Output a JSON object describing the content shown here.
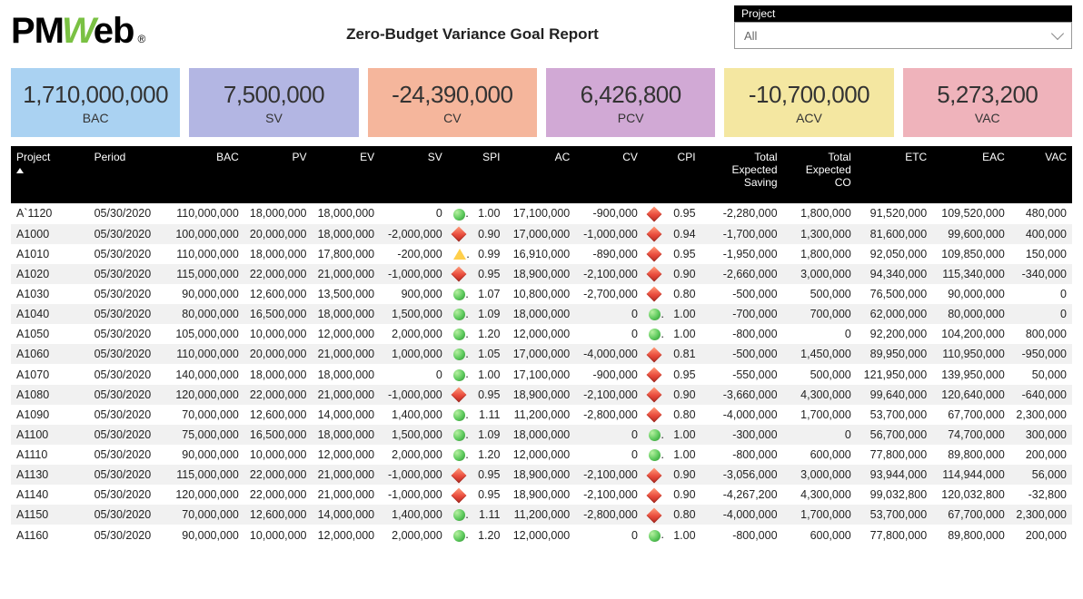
{
  "header": {
    "title": "Zero-Budget Variance Goal Report",
    "logo_text_pm": "PM",
    "logo_text_w": "W",
    "logo_text_eb": "eb",
    "logo_text_reg": "®"
  },
  "filter": {
    "label": "Project",
    "selected": "All"
  },
  "kpis": [
    {
      "label": "BAC",
      "value": "1,710,000,000",
      "bg": "#aad2f2"
    },
    {
      "label": "SV",
      "value": "7,500,000",
      "bg": "#b3b6e3"
    },
    {
      "label": "CV",
      "value": "-24,390,000",
      "bg": "#f5b69c"
    },
    {
      "label": "PCV",
      "value": "6,426,800",
      "bg": "#d1a9d5"
    },
    {
      "label": "ACV",
      "value": "-10,700,000",
      "bg": "#f4e7a1"
    },
    {
      "label": "VAC",
      "value": "5,273,200",
      "bg": "#efb3bb"
    }
  ],
  "columns": [
    {
      "key": "project",
      "label": "Project",
      "cls": "c-proj",
      "align": "left",
      "sort": true
    },
    {
      "key": "period",
      "label": "Period",
      "cls": "c-period",
      "align": "left"
    },
    {
      "key": "bac",
      "label": "BAC",
      "cls": "c-bac",
      "align": "right"
    },
    {
      "key": "pv",
      "label": "PV",
      "cls": "c-pv",
      "align": "right"
    },
    {
      "key": "ev",
      "label": "EV",
      "cls": "c-ev",
      "align": "right"
    },
    {
      "key": "sv",
      "label": "SV",
      "cls": "c-sv",
      "align": "right"
    },
    {
      "key": "sv_ind",
      "label": "",
      "cls": "c-svind",
      "align": "center",
      "is_ind": true
    },
    {
      "key": "spi",
      "label": "SPI",
      "cls": "c-spi",
      "align": "right"
    },
    {
      "key": "ac",
      "label": "AC",
      "cls": "c-ac",
      "align": "right"
    },
    {
      "key": "cv",
      "label": "CV",
      "cls": "c-cv",
      "align": "right"
    },
    {
      "key": "cv_ind",
      "label": "",
      "cls": "c-cvind",
      "align": "center",
      "is_ind": true
    },
    {
      "key": "cpi",
      "label": "CPI",
      "cls": "c-cpi",
      "align": "right"
    },
    {
      "key": "tes",
      "label": "Total Expected Saving",
      "cls": "c-tes",
      "align": "right"
    },
    {
      "key": "teco",
      "label": "Total Expected CO",
      "cls": "c-teco",
      "align": "right"
    },
    {
      "key": "etc",
      "label": "ETC",
      "cls": "c-etc",
      "align": "right"
    },
    {
      "key": "eac",
      "label": "EAC",
      "cls": "c-eac",
      "align": "right"
    },
    {
      "key": "vac",
      "label": "VAC",
      "cls": "c-vac",
      "align": "right"
    }
  ],
  "indicator_colors": {
    "green": "#5cc95c",
    "red": "#e94b3c",
    "yellow": "#ffcf4b"
  },
  "rows": [
    {
      "project": "A`1120",
      "period": "05/30/2020",
      "bac": "110,000,000",
      "pv": "18,000,000",
      "ev": "18,000,000",
      "sv": "0",
      "sv_ind": "green",
      "spi": "1.00",
      "ac": "17,100,000",
      "cv": "-900,000",
      "cv_ind": "red",
      "cpi": "0.95",
      "tes": "-2,280,000",
      "teco": "1,800,000",
      "etc": "91,520,000",
      "eac": "109,520,000",
      "vac": "480,000"
    },
    {
      "project": "A1000",
      "period": "05/30/2020",
      "bac": "100,000,000",
      "pv": "20,000,000",
      "ev": "18,000,000",
      "sv": "-2,000,000",
      "sv_ind": "red",
      "spi": "0.90",
      "ac": "17,000,000",
      "cv": "-1,000,000",
      "cv_ind": "red",
      "cpi": "0.94",
      "tes": "-1,700,000",
      "teco": "1,300,000",
      "etc": "81,600,000",
      "eac": "99,600,000",
      "vac": "400,000"
    },
    {
      "project": "A1010",
      "period": "05/30/2020",
      "bac": "110,000,000",
      "pv": "18,000,000",
      "ev": "17,800,000",
      "sv": "-200,000",
      "sv_ind": "yellow",
      "spi": "0.99",
      "ac": "16,910,000",
      "cv": "-890,000",
      "cv_ind": "red",
      "cpi": "0.95",
      "tes": "-1,950,000",
      "teco": "1,800,000",
      "etc": "92,050,000",
      "eac": "109,850,000",
      "vac": "150,000"
    },
    {
      "project": "A1020",
      "period": "05/30/2020",
      "bac": "115,000,000",
      "pv": "22,000,000",
      "ev": "21,000,000",
      "sv": "-1,000,000",
      "sv_ind": "red",
      "spi": "0.95",
      "ac": "18,900,000",
      "cv": "-2,100,000",
      "cv_ind": "red",
      "cpi": "0.90",
      "tes": "-2,660,000",
      "teco": "3,000,000",
      "etc": "94,340,000",
      "eac": "115,340,000",
      "vac": "-340,000"
    },
    {
      "project": "A1030",
      "period": "05/30/2020",
      "bac": "90,000,000",
      "pv": "12,600,000",
      "ev": "13,500,000",
      "sv": "900,000",
      "sv_ind": "green",
      "spi": "1.07",
      "ac": "10,800,000",
      "cv": "-2,700,000",
      "cv_ind": "red",
      "cpi": "0.80",
      "tes": "-500,000",
      "teco": "500,000",
      "etc": "76,500,000",
      "eac": "90,000,000",
      "vac": "0"
    },
    {
      "project": "A1040",
      "period": "05/30/2020",
      "bac": "80,000,000",
      "pv": "16,500,000",
      "ev": "18,000,000",
      "sv": "1,500,000",
      "sv_ind": "green",
      "spi": "1.09",
      "ac": "18,000,000",
      "cv": "0",
      "cv_ind": "green",
      "cpi": "1.00",
      "tes": "-700,000",
      "teco": "700,000",
      "etc": "62,000,000",
      "eac": "80,000,000",
      "vac": "0"
    },
    {
      "project": "A1050",
      "period": "05/30/2020",
      "bac": "105,000,000",
      "pv": "10,000,000",
      "ev": "12,000,000",
      "sv": "2,000,000",
      "sv_ind": "green",
      "spi": "1.20",
      "ac": "12,000,000",
      "cv": "0",
      "cv_ind": "green",
      "cpi": "1.00",
      "tes": "-800,000",
      "teco": "0",
      "etc": "92,200,000",
      "eac": "104,200,000",
      "vac": "800,000"
    },
    {
      "project": "A1060",
      "period": "05/30/2020",
      "bac": "110,000,000",
      "pv": "20,000,000",
      "ev": "21,000,000",
      "sv": "1,000,000",
      "sv_ind": "green",
      "spi": "1.05",
      "ac": "17,000,000",
      "cv": "-4,000,000",
      "cv_ind": "red",
      "cpi": "0.81",
      "tes": "-500,000",
      "teco": "1,450,000",
      "etc": "89,950,000",
      "eac": "110,950,000",
      "vac": "-950,000"
    },
    {
      "project": "A1070",
      "period": "05/30/2020",
      "bac": "140,000,000",
      "pv": "18,000,000",
      "ev": "18,000,000",
      "sv": "0",
      "sv_ind": "green",
      "spi": "1.00",
      "ac": "17,100,000",
      "cv": "-900,000",
      "cv_ind": "red",
      "cpi": "0.95",
      "tes": "-550,000",
      "teco": "500,000",
      "etc": "121,950,000",
      "eac": "139,950,000",
      "vac": "50,000"
    },
    {
      "project": "A1080",
      "period": "05/30/2020",
      "bac": "120,000,000",
      "pv": "22,000,000",
      "ev": "21,000,000",
      "sv": "-1,000,000",
      "sv_ind": "red",
      "spi": "0.95",
      "ac": "18,900,000",
      "cv": "-2,100,000",
      "cv_ind": "red",
      "cpi": "0.90",
      "tes": "-3,660,000",
      "teco": "4,300,000",
      "etc": "99,640,000",
      "eac": "120,640,000",
      "vac": "-640,000"
    },
    {
      "project": "A1090",
      "period": "05/30/2020",
      "bac": "70,000,000",
      "pv": "12,600,000",
      "ev": "14,000,000",
      "sv": "1,400,000",
      "sv_ind": "green",
      "spi": "1.11",
      "ac": "11,200,000",
      "cv": "-2,800,000",
      "cv_ind": "red",
      "cpi": "0.80",
      "tes": "-4,000,000",
      "teco": "1,700,000",
      "etc": "53,700,000",
      "eac": "67,700,000",
      "vac": "2,300,000"
    },
    {
      "project": "A1100",
      "period": "05/30/2020",
      "bac": "75,000,000",
      "pv": "16,500,000",
      "ev": "18,000,000",
      "sv": "1,500,000",
      "sv_ind": "green",
      "spi": "1.09",
      "ac": "18,000,000",
      "cv": "0",
      "cv_ind": "green",
      "cpi": "1.00",
      "tes": "-300,000",
      "teco": "0",
      "etc": "56,700,000",
      "eac": "74,700,000",
      "vac": "300,000"
    },
    {
      "project": "A1110",
      "period": "05/30/2020",
      "bac": "90,000,000",
      "pv": "10,000,000",
      "ev": "12,000,000",
      "sv": "2,000,000",
      "sv_ind": "green",
      "spi": "1.20",
      "ac": "12,000,000",
      "cv": "0",
      "cv_ind": "green",
      "cpi": "1.00",
      "tes": "-800,000",
      "teco": "600,000",
      "etc": "77,800,000",
      "eac": "89,800,000",
      "vac": "200,000"
    },
    {
      "project": "A1130",
      "period": "05/30/2020",
      "bac": "115,000,000",
      "pv": "22,000,000",
      "ev": "21,000,000",
      "sv": "-1,000,000",
      "sv_ind": "red",
      "spi": "0.95",
      "ac": "18,900,000",
      "cv": "-2,100,000",
      "cv_ind": "red",
      "cpi": "0.90",
      "tes": "-3,056,000",
      "teco": "3,000,000",
      "etc": "93,944,000",
      "eac": "114,944,000",
      "vac": "56,000"
    },
    {
      "project": "A1140",
      "period": "05/30/2020",
      "bac": "120,000,000",
      "pv": "22,000,000",
      "ev": "21,000,000",
      "sv": "-1,000,000",
      "sv_ind": "red",
      "spi": "0.95",
      "ac": "18,900,000",
      "cv": "-2,100,000",
      "cv_ind": "red",
      "cpi": "0.90",
      "tes": "-4,267,200",
      "teco": "4,300,000",
      "etc": "99,032,800",
      "eac": "120,032,800",
      "vac": "-32,800"
    },
    {
      "project": "A1150",
      "period": "05/30/2020",
      "bac": "70,000,000",
      "pv": "12,600,000",
      "ev": "14,000,000",
      "sv": "1,400,000",
      "sv_ind": "green",
      "spi": "1.11",
      "ac": "11,200,000",
      "cv": "-2,800,000",
      "cv_ind": "red",
      "cpi": "0.80",
      "tes": "-4,000,000",
      "teco": "1,700,000",
      "etc": "53,700,000",
      "eac": "67,700,000",
      "vac": "2,300,000"
    },
    {
      "project": "A1160",
      "period": "05/30/2020",
      "bac": "90,000,000",
      "pv": "10,000,000",
      "ev": "12,000,000",
      "sv": "2,000,000",
      "sv_ind": "green",
      "spi": "1.20",
      "ac": "12,000,000",
      "cv": "0",
      "cv_ind": "green",
      "cpi": "1.00",
      "tes": "-800,000",
      "teco": "600,000",
      "etc": "77,800,000",
      "eac": "89,800,000",
      "vac": "200,000"
    }
  ]
}
